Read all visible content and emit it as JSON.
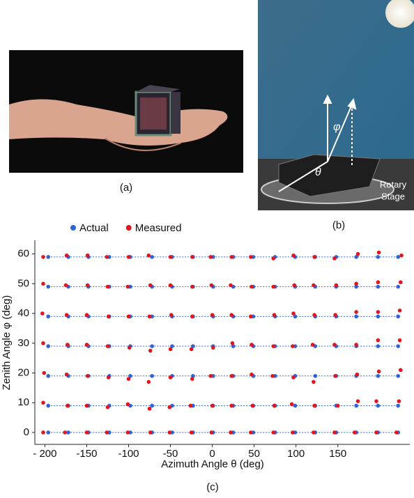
{
  "figure": {
    "captions": [
      "(a)",
      "(b)",
      "(c)"
    ],
    "photo_b_labels": [
      "φ",
      "θ",
      "Rotary",
      "Stage"
    ]
  },
  "chart_data": {
    "type": "scatter",
    "x_label": "Azimuth Angle θ (deg)",
    "y_label": "Zenith Angle φ (deg)",
    "xlim": [
      -212,
      236
    ],
    "ylim": [
      -4,
      64.6
    ],
    "xticks": [
      {
        "value": -200,
        "label": "- 200"
      },
      -150,
      -100,
      -50,
      0,
      50,
      100,
      150
    ],
    "yticks": [
      0,
      10,
      20,
      30,
      40,
      50,
      60
    ],
    "legend": "top",
    "series": [
      {
        "name": "Actual",
        "color": "#2f62d6",
        "x": [
          -196,
          -172,
          -148,
          -123,
          -98,
          -72,
          -48,
          -23,
          1,
          25,
          49,
          75,
          99,
          123,
          148,
          172,
          198,
          222,
          -196,
          -172,
          -148,
          -123,
          -98,
          -72,
          -48,
          -23,
          1,
          25,
          49,
          75,
          99,
          123,
          148,
          172,
          198,
          222,
          -196,
          -172,
          -148,
          -123,
          -98,
          -72,
          -48,
          -23,
          1,
          25,
          49,
          75,
          99,
          123,
          148,
          172,
          198,
          222,
          -196,
          -172,
          -148,
          -123,
          -98,
          -72,
          -48,
          -23,
          1,
          25,
          49,
          75,
          99,
          123,
          148,
          172,
          198,
          222,
          -196,
          -172,
          -148,
          -123,
          -98,
          -72,
          -48,
          -23,
          1,
          25,
          49,
          75,
          99,
          123,
          148,
          172,
          198,
          222,
          -196,
          -172,
          -148,
          -123,
          -98,
          -72,
          -48,
          -23,
          1,
          25,
          49,
          75,
          99,
          123,
          148,
          172,
          198,
          222,
          -196,
          -172,
          -148,
          -123,
          -98,
          -72,
          -48,
          -23,
          1,
          25,
          49,
          75,
          99,
          123,
          148,
          172,
          198,
          222
        ],
        "values": [
          0,
          0,
          0,
          0,
          0,
          0,
          0,
          0,
          0,
          0,
          0,
          0,
          0,
          0,
          0,
          0,
          0,
          0,
          9,
          9,
          9,
          9,
          9,
          9,
          9,
          9,
          9,
          9,
          9,
          9,
          9,
          9,
          9,
          9,
          9,
          9,
          19,
          19,
          19,
          19,
          19,
          19,
          19,
          19,
          19,
          19,
          19,
          19,
          19,
          19,
          19,
          19,
          19,
          19,
          29,
          29,
          29,
          29,
          29,
          29,
          29,
          29,
          29,
          29,
          29,
          29,
          29,
          29,
          29,
          29,
          29,
          29,
          39,
          39,
          39,
          39,
          39,
          39,
          39,
          39,
          39,
          39,
          39,
          39,
          39,
          39,
          39,
          39,
          39,
          39,
          49,
          49,
          49,
          49,
          49,
          49,
          49,
          49,
          49,
          49,
          49,
          49,
          49,
          49,
          49,
          49,
          49,
          49,
          59,
          59,
          59,
          59,
          59,
          59,
          59,
          59,
          59,
          59,
          59,
          59,
          59,
          59,
          59,
          59,
          59,
          59
        ]
      },
      {
        "name": "Measured",
        "color": "#e3141c",
        "x": [
          -202,
          -176,
          -150,
          -126,
          -101,
          -74,
          -51,
          -25,
          -1,
          22,
          46,
          73,
          96,
          121,
          146,
          170,
          196,
          220,
          -202,
          -173,
          -150,
          -125,
          -101,
          -75,
          -51,
          -26,
          0,
          23,
          48,
          74,
          95,
          122,
          150,
          174,
          196,
          223,
          -201,
          -174,
          -149,
          -124,
          -100,
          -76,
          -50,
          -24,
          -2,
          23,
          47,
          72,
          97,
          121,
          147,
          173,
          199,
          225,
          -202,
          -173,
          -150,
          -125,
          -99,
          -74,
          -50,
          -25,
          1,
          24,
          47,
          73,
          96,
          120,
          146,
          172,
          198,
          224,
          -203,
          -174,
          -150,
          -124,
          -100,
          -75,
          -49,
          -24,
          0,
          23,
          46,
          74,
          97,
          122,
          147,
          172,
          198,
          224,
          -202,
          -175,
          -149,
          -125,
          -101,
          -74,
          -50,
          -24,
          -1,
          22,
          47,
          73,
          98,
          121,
          148,
          172,
          198,
          225,
          -202,
          -174,
          -149,
          -126,
          -100,
          -76,
          -50,
          -24,
          -2,
          23,
          46,
          73,
          97,
          122,
          146,
          174,
          199,
          226
        ],
        "values": [
          0,
          0,
          0,
          0,
          0,
          0,
          0,
          0,
          0,
          0,
          0,
          0,
          0,
          0,
          0,
          0,
          0,
          0,
          10,
          9,
          9,
          8.5,
          9.5,
          8,
          8.5,
          9,
          9,
          9,
          9,
          9,
          9.5,
          9,
          9,
          10.5,
          10.5,
          10.5,
          20,
          19.5,
          19,
          18.5,
          18,
          17,
          18.5,
          18,
          19,
          19,
          19.5,
          19,
          18.5,
          17,
          19,
          19.5,
          20.5,
          21,
          30,
          29.5,
          29.5,
          29,
          28.5,
          27.5,
          28,
          28,
          28.5,
          30,
          29.5,
          29,
          29,
          29.5,
          29.5,
          29.5,
          31,
          31,
          40,
          39.5,
          39.5,
          39,
          39,
          39,
          39.5,
          39,
          39.5,
          39.5,
          39,
          39.5,
          40,
          39.5,
          39.5,
          40.5,
          40.5,
          41,
          50,
          49.5,
          49.5,
          49,
          49,
          49.5,
          49.5,
          49,
          49.5,
          49.5,
          49,
          49,
          49.5,
          49.5,
          49.5,
          50,
          50.5,
          50.5,
          59,
          59.5,
          59.5,
          59,
          59,
          59.5,
          59,
          59,
          59,
          59,
          59,
          58.5,
          59.5,
          59,
          58.5,
          60,
          60.5,
          59.5
        ]
      }
    ]
  }
}
